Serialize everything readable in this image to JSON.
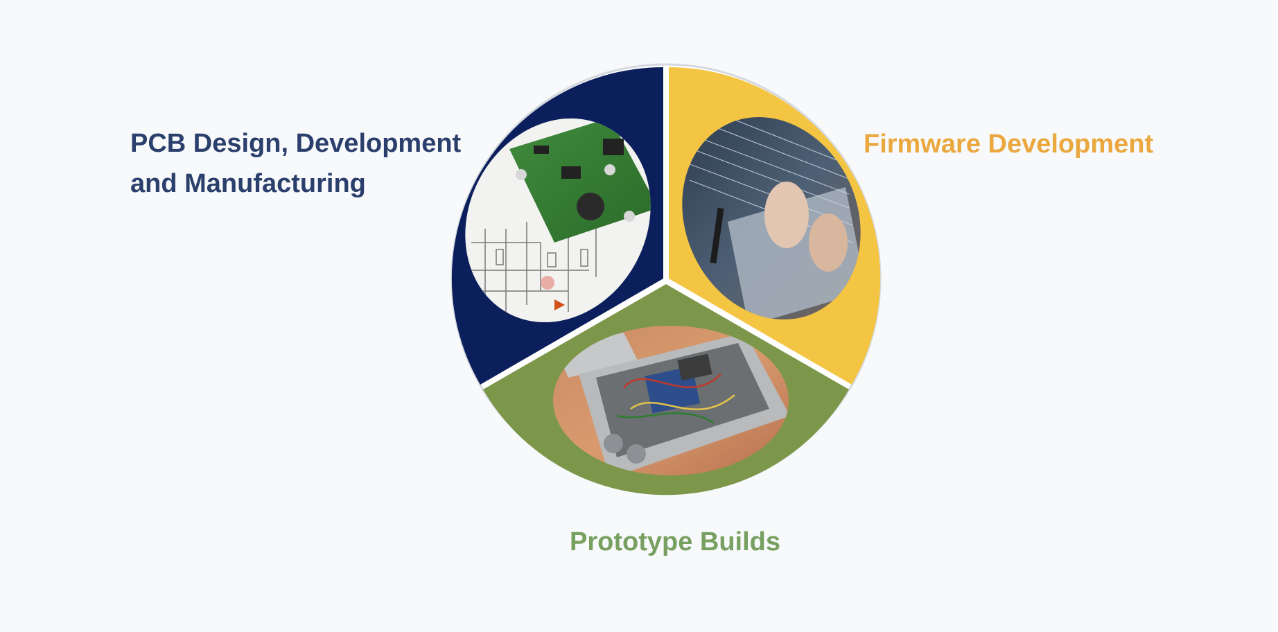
{
  "labels": {
    "pcb_line1": "PCB Design, Development",
    "pcb_line2": "and Manufacturing",
    "firmware": "Firmware Development",
    "prototype": "Prototype Builds"
  },
  "colors": {
    "background": "#f7f9fb",
    "pcb_segment": "#0b1f5c",
    "firmware_segment": "#f4c443",
    "prototype_segment": "#7c974a",
    "pcb_text": "#2b3f6c",
    "firmware_text": "#eaa83f",
    "prototype_text": "#78a060"
  },
  "images": {
    "pcb": "pcb-circuit-board-photo",
    "firmware": "laptop-typing-code-photo",
    "prototype": "prototype-enclosure-wiring-photo"
  }
}
